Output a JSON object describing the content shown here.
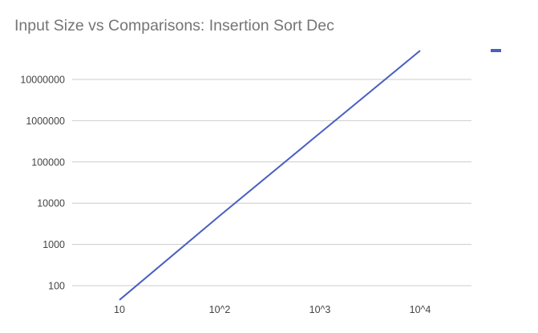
{
  "chart_data": {
    "type": "line",
    "title": "Input Size vs Comparisons: Insertion Sort Dec",
    "xlabel": "",
    "ylabel": "",
    "x_scale": "log",
    "y_scale": "log",
    "x": [
      10,
      100,
      1000,
      10000
    ],
    "x_tick_labels": [
      "10",
      "10^2",
      "10^3",
      "10^4"
    ],
    "y_ticks": [
      100,
      1000,
      10000,
      100000,
      1000000,
      10000000
    ],
    "y_tick_labels": [
      "100",
      "1000",
      "10000",
      "100000",
      "1000000",
      "10000000"
    ],
    "series": [
      {
        "color": "#4a5fc1",
        "values": [
          45,
          4950,
          499500,
          49995000
        ]
      }
    ],
    "grid": "horizontal",
    "legend_position": "top-right"
  }
}
